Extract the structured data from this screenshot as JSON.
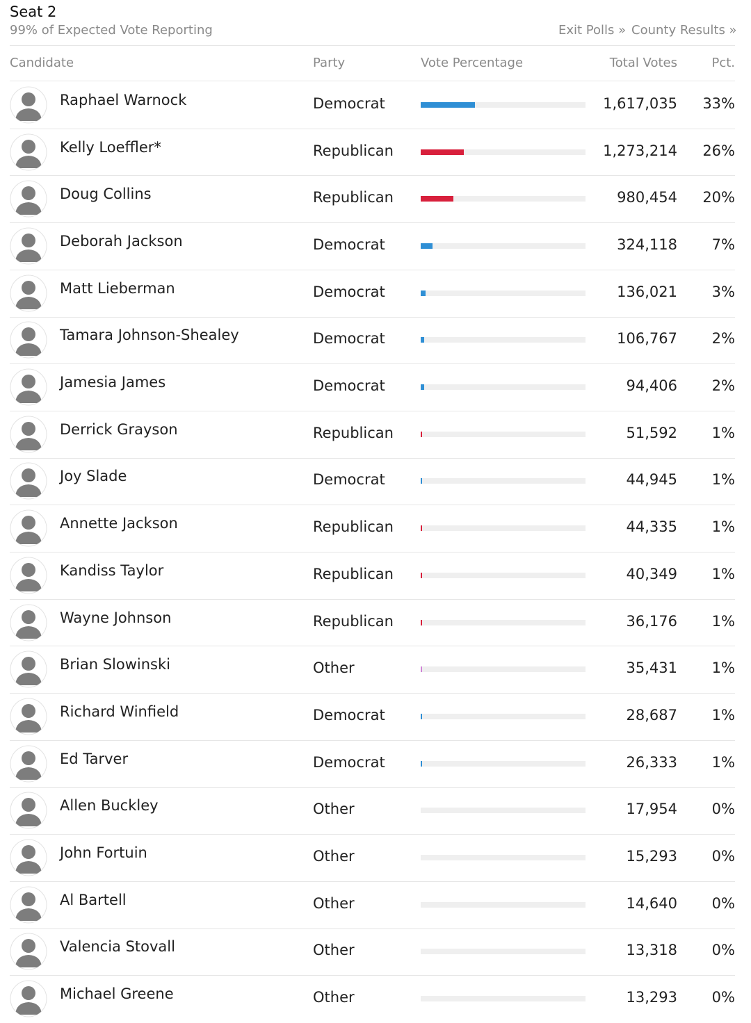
{
  "header": {
    "title": "Seat 2",
    "subtitle": "99% of Expected Vote Reporting",
    "links": [
      "Exit Polls »",
      "County Results »"
    ]
  },
  "table": {
    "columns": [
      "Candidate",
      "Party",
      "Vote Percentage",
      "Total Votes",
      "Pct."
    ],
    "party_colors": {
      "Democrat": "#2f8fd5",
      "Republican": "#d8203c",
      "Other": "#cf85d6"
    },
    "bar_track_color": "#efefef",
    "rows": [
      {
        "candidate": "Raphael Warnock",
        "party": "Democrat",
        "votes": "1,617,035",
        "pct": {
          "value": 33,
          "label": "33%"
        }
      },
      {
        "candidate": "Kelly Loeffler*",
        "party": "Republican",
        "votes": "1,273,214",
        "pct": {
          "value": 26,
          "label": "26%"
        }
      },
      {
        "candidate": "Doug Collins",
        "party": "Republican",
        "votes": "980,454",
        "pct": {
          "value": 20,
          "label": "20%"
        }
      },
      {
        "candidate": "Deborah Jackson",
        "party": "Democrat",
        "votes": "324,118",
        "pct": {
          "value": 7,
          "label": "7%"
        }
      },
      {
        "candidate": "Matt Lieberman",
        "party": "Democrat",
        "votes": "136,021",
        "pct": {
          "value": 3,
          "label": "3%"
        }
      },
      {
        "candidate": "Tamara Johnson-Shealey",
        "party": "Democrat",
        "votes": "106,767",
        "pct": {
          "value": 2,
          "label": "2%"
        }
      },
      {
        "candidate": "Jamesia James",
        "party": "Democrat",
        "votes": "94,406",
        "pct": {
          "value": 2,
          "label": "2%"
        }
      },
      {
        "candidate": "Derrick Grayson",
        "party": "Republican",
        "votes": "51,592",
        "pct": {
          "value": 1,
          "label": "1%"
        }
      },
      {
        "candidate": "Joy Slade",
        "party": "Democrat",
        "votes": "44,945",
        "pct": {
          "value": 1,
          "label": "1%"
        }
      },
      {
        "candidate": "Annette Jackson",
        "party": "Republican",
        "votes": "44,335",
        "pct": {
          "value": 1,
          "label": "1%"
        }
      },
      {
        "candidate": "Kandiss Taylor",
        "party": "Republican",
        "votes": "40,349",
        "pct": {
          "value": 1,
          "label": "1%"
        }
      },
      {
        "candidate": "Wayne Johnson",
        "party": "Republican",
        "votes": "36,176",
        "pct": {
          "value": 1,
          "label": "1%"
        }
      },
      {
        "candidate": "Brian Slowinski",
        "party": "Other",
        "votes": "35,431",
        "pct": {
          "value": 1,
          "label": "1%"
        }
      },
      {
        "candidate": "Richard Winfield",
        "party": "Democrat",
        "votes": "28,687",
        "pct": {
          "value": 1,
          "label": "1%"
        }
      },
      {
        "candidate": "Ed Tarver",
        "party": "Democrat",
        "votes": "26,333",
        "pct": {
          "value": 1,
          "label": "1%"
        }
      },
      {
        "candidate": "Allen Buckley",
        "party": "Other",
        "votes": "17,954",
        "pct": {
          "value": 0,
          "label": "0%"
        }
      },
      {
        "candidate": "John Fortuin",
        "party": "Other",
        "votes": "15,293",
        "pct": {
          "value": 0,
          "label": "0%"
        }
      },
      {
        "candidate": "Al Bartell",
        "party": "Other",
        "votes": "14,640",
        "pct": {
          "value": 0,
          "label": "0%"
        }
      },
      {
        "candidate": "Valencia Stovall",
        "party": "Other",
        "votes": "13,318",
        "pct": {
          "value": 0,
          "label": "0%"
        }
      },
      {
        "candidate": "Michael Greene",
        "party": "Other",
        "votes": "13,293",
        "pct": {
          "value": 0,
          "label": "0%"
        }
      }
    ]
  }
}
